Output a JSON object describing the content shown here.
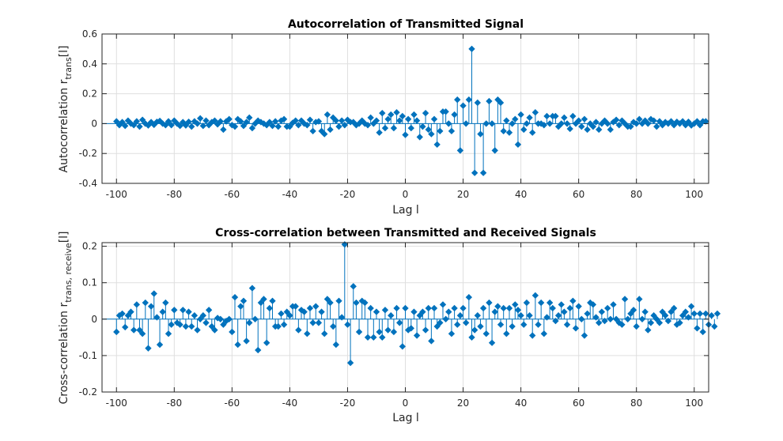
{
  "chart_data": [
    {
      "type": "stem",
      "title": "Autocorrelation of Transmitted Signal",
      "xlabel": "Lag l",
      "ylabel": {
        "main": "Autocorrelation r",
        "sub": "trans",
        "suffix": "[l]"
      },
      "xlim": [
        -105,
        105
      ],
      "ylim": [
        -0.4,
        0.6
      ],
      "xticks": [
        -100,
        -80,
        -60,
        -40,
        -20,
        0,
        20,
        40,
        60,
        80,
        100
      ],
      "yticks": [
        -0.4,
        -0.2,
        0,
        0.2,
        0.4,
        0.6
      ],
      "ytick_labels": [
        "-0.4",
        "-0.2",
        "0",
        "0.2",
        "0.4",
        "0.6"
      ],
      "grid": true,
      "color": "#0072BD",
      "x_start": -100,
      "x_step": 1,
      "values": [
        0.015,
        -0.01,
        0.01,
        -0.015,
        0.02,
        0.0,
        -0.01,
        0.015,
        -0.02,
        0.025,
        0.0,
        -0.012,
        0.01,
        -0.008,
        0.012,
        0.018,
        0.0,
        -0.01,
        0.015,
        -0.01,
        0.02,
        0.0,
        -0.015,
        0.01,
        -0.012,
        0.012,
        -0.02,
        0.015,
        0.0,
        0.035,
        -0.015,
        0.02,
        -0.01,
        0.01,
        0.02,
        -0.005,
        0.015,
        -0.04,
        0.015,
        0.03,
        -0.01,
        -0.02,
        0.03,
        0.015,
        -0.015,
        0.01,
        0.04,
        -0.03,
        0.0,
        0.02,
        0.01,
        0.0,
        -0.01,
        0.01,
        -0.015,
        0.015,
        -0.02,
        0.02,
        0.03,
        -0.02,
        -0.02,
        0.005,
        0.02,
        -0.01,
        0.02,
        0.0,
        -0.01,
        0.025,
        -0.05,
        0.01,
        0.015,
        -0.05,
        -0.07,
        0.06,
        -0.04,
        0.04,
        0.02,
        -0.02,
        0.02,
        -0.01,
        0.025,
        0.01,
        0.01,
        -0.01,
        0.0,
        0.02,
        0.0,
        -0.01,
        0.04,
        0.0,
        0.02,
        -0.06,
        0.07,
        -0.03,
        0.03,
        0.06,
        -0.03,
        0.075,
        0.02,
        0.05,
        -0.075,
        0.03,
        -0.03,
        0.06,
        0.02,
        -0.09,
        -0.02,
        0.07,
        -0.04,
        -0.07,
        0.03,
        -0.14,
        -0.05,
        0.08,
        0.08,
        0.0,
        -0.05,
        0.06,
        0.16,
        -0.18,
        0.12,
        0.0,
        0.16,
        0.5,
        -0.33,
        0.14,
        -0.07,
        -0.33,
        0.0,
        0.15,
        0.0,
        -0.18,
        0.16,
        0.14,
        -0.05,
        0.02,
        -0.06,
        0.0,
        0.03,
        -0.14,
        0.06,
        -0.04,
        0.0,
        0.04,
        -0.06,
        0.075,
        0.0,
        0.0,
        -0.01,
        0.05,
        0.0,
        0.05,
        0.05,
        -0.02,
        0.0,
        0.04,
        0.0,
        -0.035,
        0.05,
        0.0,
        0.02,
        -0.02,
        0.03,
        -0.04,
        0.0,
        -0.02,
        0.01,
        -0.04,
        0.0,
        0.02,
        0.0,
        -0.04,
        0.01,
        0.025,
        -0.01,
        0.02,
        0.0,
        -0.02,
        -0.02,
        0.01,
        0.0,
        0.03,
        0.0,
        0.02,
        0.0,
        0.03,
        0.02,
        -0.02,
        0.015,
        -0.01,
        0.01,
        0.0,
        0.015,
        -0.01,
        0.012,
        0.0,
        0.015,
        -0.01,
        0.012,
        -0.012,
        0.0,
        0.015,
        -0.01,
        0.015,
        0.015
      ]
    },
    {
      "type": "stem",
      "title": "Cross-correlation between Transmitted and Received Signals",
      "xlabel": "Lag l",
      "ylabel": {
        "main": "Cross-correlation r",
        "sub": "trans, receive",
        "suffix": "[l]"
      },
      "xlim": [
        -105,
        105
      ],
      "ylim": [
        -0.2,
        0.21
      ],
      "xticks": [
        -100,
        -80,
        -60,
        -40,
        -20,
        0,
        20,
        40,
        60,
        80,
        100
      ],
      "yticks": [
        -0.2,
        -0.1,
        0,
        0.1,
        0.2
      ],
      "ytick_labels": [
        "-0.2",
        "-0.1",
        "0",
        "0.1",
        "0.2"
      ],
      "grid": true,
      "color": "#0072BD",
      "x_start": -100,
      "x_step": 1,
      "values": [
        -0.035,
        0.01,
        0.015,
        -0.022,
        0.01,
        0.02,
        -0.03,
        0.04,
        -0.03,
        -0.04,
        0.045,
        -0.08,
        0.035,
        0.07,
        0.005,
        -0.07,
        0.02,
        0.045,
        -0.04,
        -0.015,
        0.025,
        -0.01,
        -0.015,
        0.025,
        -0.02,
        0.02,
        -0.02,
        0.01,
        -0.03,
        0.0,
        0.01,
        -0.01,
        0.025,
        -0.02,
        -0.03,
        0.003,
        0.0,
        -0.015,
        -0.005,
        0.0,
        -0.035,
        0.06,
        -0.07,
        0.035,
        0.05,
        -0.06,
        -0.01,
        0.085,
        0.0,
        -0.085,
        0.045,
        0.055,
        -0.065,
        0.03,
        0.05,
        -0.02,
        -0.02,
        0.015,
        -0.015,
        0.02,
        0.01,
        0.035,
        0.035,
        -0.03,
        0.025,
        0.02,
        -0.04,
        0.03,
        -0.01,
        0.035,
        -0.01,
        0.02,
        -0.04,
        0.055,
        0.045,
        -0.02,
        -0.07,
        0.05,
        0.005,
        0.205,
        -0.015,
        -0.12,
        0.09,
        0.045,
        -0.035,
        0.05,
        0.045,
        -0.05,
        0.03,
        -0.05,
        0.02,
        -0.035,
        -0.05,
        0.025,
        -0.03,
        0.01,
        -0.035,
        0.03,
        -0.01,
        -0.075,
        0.03,
        -0.03,
        -0.025,
        0.02,
        -0.045,
        0.01,
        0.02,
        -0.03,
        0.03,
        -0.06,
        0.03,
        -0.02,
        -0.01,
        0.04,
        0.0,
        0.02,
        -0.04,
        0.03,
        -0.015,
        0.01,
        0.03,
        -0.01,
        0.06,
        -0.05,
        -0.03,
        0.01,
        -0.02,
        0.03,
        -0.04,
        0.045,
        -0.065,
        0.02,
        0.035,
        -0.015,
        0.03,
        -0.04,
        0.03,
        -0.02,
        0.04,
        0.025,
        0.01,
        -0.015,
        0.045,
        0.01,
        -0.045,
        0.065,
        -0.015,
        0.045,
        -0.04,
        0.005,
        0.045,
        0.03,
        -0.005,
        0.01,
        0.04,
        0.02,
        -0.015,
        0.03,
        0.05,
        -0.025,
        0.035,
        0.0,
        -0.045,
        0.015,
        0.045,
        0.04,
        0.005,
        -0.01,
        0.02,
        -0.005,
        0.03,
        0.0,
        0.04,
        0.0,
        -0.01,
        -0.015,
        0.055,
        0.0,
        0.015,
        0.025,
        -0.02,
        0.055,
        0.0,
        0.02,
        -0.03,
        -0.01,
        0.01,
        0.0,
        -0.01,
        0.02,
        0.01,
        -0.005,
        0.02,
        0.03,
        -0.015,
        -0.01,
        0.01,
        0.02,
        0.005,
        0.035,
        0.015,
        -0.025,
        0.015,
        -0.035,
        0.015,
        -0.015,
        0.01,
        -0.02,
        0.015
      ]
    }
  ]
}
